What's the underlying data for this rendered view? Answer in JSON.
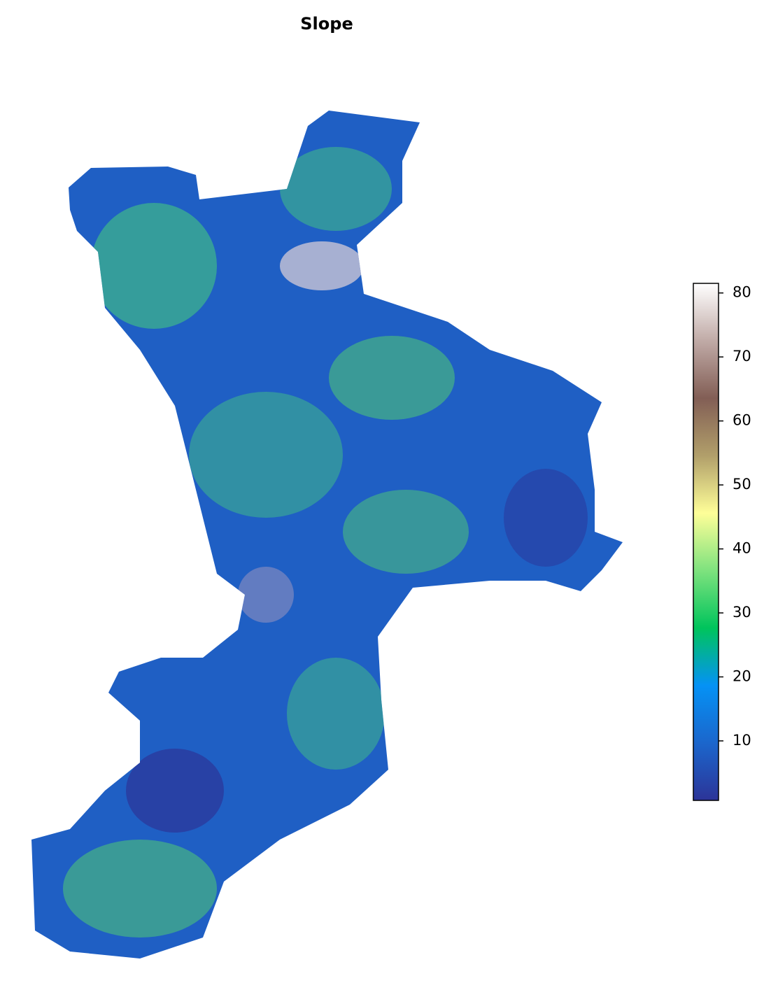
{
  "title": "Slope",
  "colorbar": {
    "lim": [
      0.7,
      81.5
    ],
    "ticks": [
      10,
      20,
      30,
      40,
      50,
      60,
      70,
      80
    ],
    "colors": [
      "#2c3498",
      "#1b66cc",
      "#0592f5",
      "#00c45c",
      "#7ee27e",
      "#fefe98",
      "#b19f6a",
      "#825e55",
      "#c0aaa6",
      "#ffffff"
    ]
  }
}
